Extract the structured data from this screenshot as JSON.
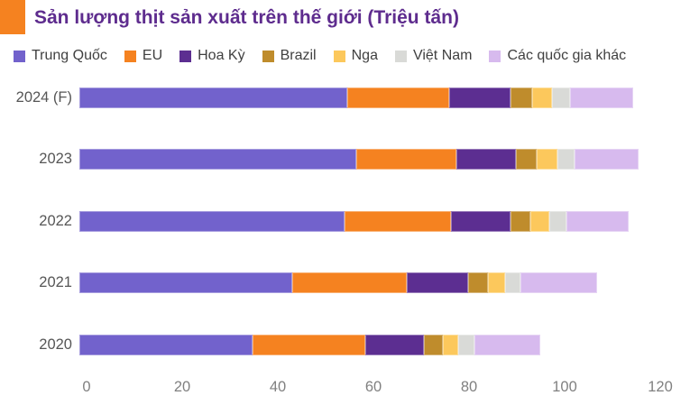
{
  "header": {
    "title": "Sản lượng thịt sản xuất trên thế giới (Triệu tấn)"
  },
  "theme": {
    "accent_color": "#F58220",
    "title_color": "#5E2C8E",
    "category_label_color": "#565656",
    "axis_label_color": "#808080",
    "legend_text_color": "#404040",
    "background_color": "#FFFFFF"
  },
  "chart_data": {
    "type": "bar",
    "stacked": true,
    "orientation": "horizontal",
    "title": "Sản lượng thịt sản xuất trên thế giới (Triệu tấn)",
    "unit": "Triệu tấn",
    "categories": [
      "2024 (F)",
      "2023",
      "2022",
      "2021",
      "2020"
    ],
    "series": [
      {
        "name": "Trung Quốc",
        "color": "#7262CC",
        "values": [
          56.0,
          58.0,
          55.4,
          44.5,
          36.3
        ]
      },
      {
        "name": "EU",
        "color": "#F58220",
        "values": [
          21.3,
          20.8,
          22.4,
          23.9,
          23.5
        ]
      },
      {
        "name": "Hoa Kỳ",
        "color": "#5C2E91",
        "values": [
          12.9,
          12.5,
          12.3,
          12.9,
          12.2
        ]
      },
      {
        "name": "Brazil",
        "color": "#BF8C2C",
        "values": [
          4.5,
          4.4,
          4.3,
          4.2,
          4.0
        ]
      },
      {
        "name": "Nga",
        "color": "#FCC85C",
        "values": [
          4.2,
          4.3,
          3.9,
          3.6,
          3.3
        ]
      },
      {
        "name": "Việt Nam",
        "color": "#D9DAD7",
        "values": [
          3.7,
          3.5,
          3.5,
          3.2,
          3.3
        ]
      },
      {
        "name": "Các quốc gia khác",
        "color": "#D7BAEE",
        "values": [
          13.2,
          13.4,
          13.1,
          16.1,
          13.8
        ]
      }
    ],
    "totals": [
      115.8,
      116.9,
      114.9,
      108.4,
      96.4
    ],
    "x_ticks": [
      "0",
      "20",
      "40",
      "60",
      "80",
      "100",
      "120"
    ],
    "xlim": [
      0,
      120
    ],
    "xlabel": "",
    "ylabel": "",
    "grid": false,
    "legend_position": "top"
  }
}
